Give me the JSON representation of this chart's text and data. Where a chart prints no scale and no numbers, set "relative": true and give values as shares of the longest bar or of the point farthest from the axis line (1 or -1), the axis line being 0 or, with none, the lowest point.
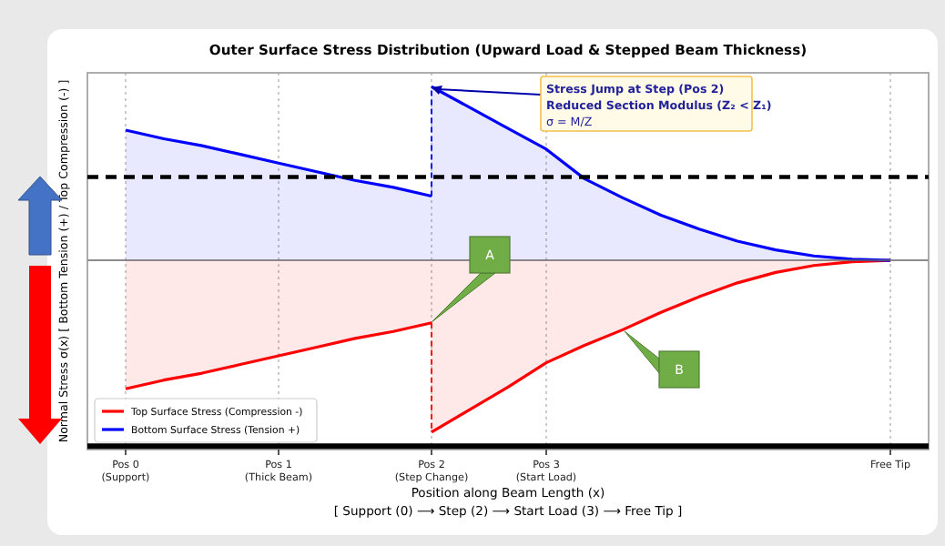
{
  "chart_data": {
    "type": "area",
    "relative": true,
    "title": "Outer Surface Stress Distribution (Upward Load & Stepped Beam Thickness)",
    "xlabel": "Position along Beam Length (x)\n[ Support (0) ⟶ Step (2) ⟶ Start Load (3) ⟶ Free Tip ]",
    "ylabel": "Normal Stress σ(x) [ Bottom Tension (+) / Top Compression (-) ]",
    "categories": [
      "Pos 0\n(Support)",
      null,
      null,
      null,
      "Pos 1\n(Thick Beam)",
      null,
      null,
      null,
      "Pos 2\n(Step Change)",
      null,
      null,
      "Pos 3\n(Start Load)",
      null,
      null,
      null,
      null,
      null,
      null,
      null,
      null,
      "Free Tip"
    ],
    "grid": "x",
    "legend": "bottom left",
    "line_style": "solid",
    "series": [
      {
        "name": "Top Surface Stress (Compression -)",
        "color": "#ff0000",
        "values": [
          -0.74,
          -0.69,
          -0.65,
          -0.6,
          -0.55,
          -0.5,
          -0.45,
          -0.41,
          -0.36,
          null,
          null,
          null,
          null,
          null,
          null,
          null,
          null,
          null,
          null,
          null,
          null
        ]
      },
      {
        "color": "#ff0000",
        "values": [
          null,
          null,
          null,
          null,
          null,
          null,
          null,
          null,
          -0.99,
          -0.86,
          -0.73,
          -0.59,
          -0.49,
          -0.4,
          -0.3,
          -0.21,
          -0.13,
          -0.07,
          -0.03,
          -0.008,
          0
        ]
      },
      {
        "name": "Bottom Surface Stress (Tension +)",
        "color": "#0000ff",
        "values": [
          0.75,
          0.7,
          0.66,
          0.61,
          0.56,
          0.51,
          0.46,
          0.42,
          0.37,
          null,
          null,
          null,
          null,
          null,
          null,
          null,
          null,
          null,
          null,
          null,
          null
        ]
      },
      {
        "color": "#0000ff",
        "values": [
          null,
          null,
          null,
          null,
          null,
          null,
          null,
          null,
          1.0,
          0.88,
          0.76,
          0.64,
          0.47,
          0.36,
          0.26,
          0.18,
          0.11,
          0.06,
          0.025,
          0.006,
          0
        ]
      }
    ],
    "ref_lines": [
      {
        "axis": "y",
        "value": 0.48,
        "color": "#000000",
        "line_style": "dashed"
      },
      {
        "axis": "y",
        "value": -1.07,
        "color": "#000000",
        "line_style": "solid"
      }
    ],
    "annotations": [
      "Stress Jump at Step (Pos 2)\nReduced Section Modulus (Z₂ < Z₁)\nσ = M/Z",
      "A",
      "B"
    ]
  }
}
